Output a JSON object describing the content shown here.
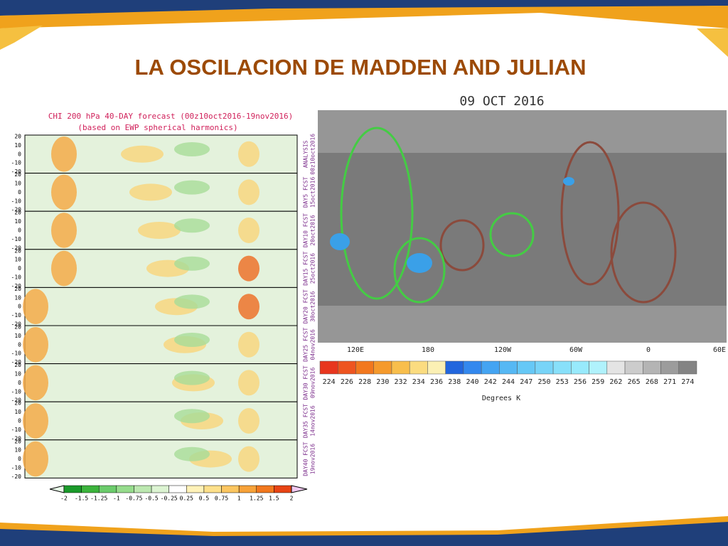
{
  "title": "LA OSCILACION DE MADDEN AND JULIAN",
  "left_panel": {
    "title": "CHI 200 hPa 40-DAY forecast (00z10oct2016-19nov2016)",
    "subtitle": "(based on EWP spherical harmonics)",
    "yticks": [
      "20",
      "10",
      "0",
      "-10",
      "-20"
    ],
    "rows": [
      {
        "label": "ANALYSIS",
        "date": "00z10oct2016"
      },
      {
        "label": "DAY5 FCST",
        "date": "15oct2016"
      },
      {
        "label": "DAY10 FCST",
        "date": "20oct2016"
      },
      {
        "label": "DAY15 FCST",
        "date": "25oct2016"
      },
      {
        "label": "DAY20 FCST",
        "date": "30oct2016"
      },
      {
        "label": "DAY25 FCST",
        "date": "04nov2016"
      },
      {
        "label": "DAY30 FCST",
        "date": "09nov2016"
      },
      {
        "label": "DAY35 FCST",
        "date": "14nov2016"
      },
      {
        "label": "DAY40 FCST",
        "date": "19nov2016"
      }
    ],
    "colorbar": [
      "-2",
      "-1.5",
      "-1.25",
      "-1",
      "-0.75",
      "-0.5",
      "-0.25",
      "0.25",
      "0.5",
      "0.75",
      "1",
      "1.25",
      "1.5",
      "2"
    ]
  },
  "right_panel": {
    "title": "09 OCT 2016",
    "xticks": [
      "120E",
      "180",
      "120W",
      "60W",
      "0",
      "60E"
    ],
    "colorbar": [
      "224",
      "226",
      "228",
      "230",
      "232",
      "234",
      "236",
      "238",
      "240",
      "242",
      "244",
      "247",
      "250",
      "253",
      "256",
      "259",
      "262",
      "265",
      "268",
      "271",
      "274"
    ],
    "colorbar_label": "Degrees K"
  }
}
